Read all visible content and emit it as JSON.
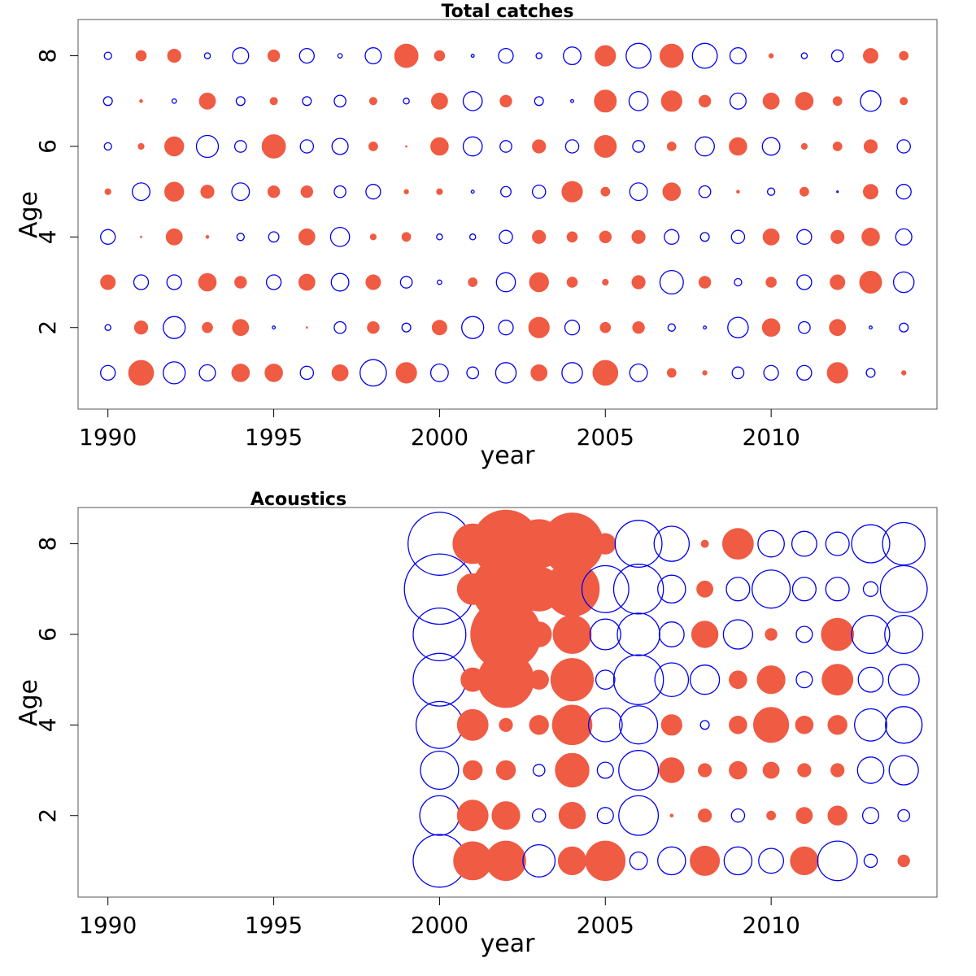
{
  "figure": {
    "colors": {
      "positive": "#0000ee",
      "negative": "#f05b43"
    }
  },
  "chart_data": [
    {
      "type": "scatter",
      "subtype": "bubble-residuals",
      "title": "Total catches",
      "xlabel": "year",
      "ylabel": "Age",
      "xlim": [
        1989.1,
        2015.0
      ],
      "ylim": [
        0.2,
        8.8
      ],
      "x_ticks": [
        1990,
        1995,
        2000,
        2005,
        2010
      ],
      "y_ticks": [
        2,
        4,
        6,
        8
      ],
      "years": [
        1990,
        1991,
        1992,
        1993,
        1994,
        1995,
        1996,
        1997,
        1998,
        1999,
        2000,
        2001,
        2002,
        2003,
        2004,
        2005,
        2006,
        2007,
        2008,
        2009,
        2010,
        2011,
        2012,
        2013,
        2014
      ],
      "ages": [
        1,
        2,
        3,
        4,
        5,
        6,
        7,
        8
      ],
      "residuals_by_age": {
        "1": [
          0.5,
          -0.85,
          0.75,
          0.55,
          -0.6,
          -0.6,
          0.45,
          -0.55,
          0.9,
          -0.7,
          0.6,
          0.4,
          0.7,
          -0.55,
          0.7,
          -0.85,
          0.6,
          -0.3,
          -0.15,
          0.4,
          0.5,
          0.5,
          -0.7,
          0.3,
          -0.15
        ],
        "2": [
          0.2,
          -0.45,
          0.75,
          -0.35,
          -0.55,
          0.1,
          -0.05,
          0.4,
          -0.4,
          0.3,
          -0.5,
          0.75,
          0.5,
          -0.7,
          0.5,
          -0.35,
          -0.4,
          0.25,
          0.1,
          0.7,
          -0.6,
          0.4,
          -0.55,
          0.1,
          0.3
        ],
        "3": [
          -0.5,
          0.5,
          0.5,
          -0.6,
          -0.4,
          0.5,
          -0.55,
          0.6,
          -0.5,
          0.4,
          0.15,
          -0.3,
          0.65,
          -0.65,
          -0.35,
          -0.2,
          -0.45,
          0.8,
          -0.4,
          0.25,
          -0.35,
          0.5,
          -0.5,
          -0.75,
          0.7
        ],
        "4": [
          0.5,
          -0.05,
          -0.55,
          -0.1,
          0.25,
          0.35,
          -0.55,
          0.65,
          -0.2,
          -0.3,
          0.2,
          0.2,
          0.45,
          -0.45,
          -0.35,
          -0.4,
          -0.45,
          0.5,
          0.3,
          0.45,
          -0.55,
          0.5,
          -0.45,
          -0.6,
          0.55
        ],
        "5": [
          -0.2,
          0.6,
          -0.65,
          -0.45,
          0.6,
          -0.4,
          -0.4,
          0.4,
          0.5,
          -0.15,
          -0.2,
          0.1,
          0.35,
          0.45,
          -0.7,
          -0.3,
          0.6,
          -0.6,
          0.4,
          -0.1,
          0.25,
          -0.3,
          0.05,
          -0.5,
          0.5
        ],
        "6": [
          0.25,
          -0.2,
          -0.65,
          0.75,
          0.4,
          -0.8,
          0.45,
          0.55,
          -0.3,
          -0.05,
          -0.6,
          0.65,
          0.4,
          -0.45,
          0.45,
          -0.75,
          0.4,
          -0.3,
          0.65,
          -0.6,
          0.6,
          -0.2,
          -0.3,
          -0.45,
          0.45
        ],
        "7": [
          0.3,
          -0.1,
          0.15,
          -0.55,
          0.3,
          -0.25,
          0.3,
          0.4,
          -0.25,
          0.2,
          -0.55,
          0.65,
          -0.4,
          0.3,
          0.1,
          -0.75,
          0.65,
          -0.7,
          -0.4,
          0.55,
          -0.55,
          -0.6,
          -0.3,
          0.7,
          -0.25
        ],
        "8": [
          0.25,
          -0.35,
          -0.45,
          0.2,
          0.55,
          -0.4,
          0.5,
          0.15,
          0.55,
          -0.8,
          -0.35,
          0.1,
          0.5,
          0.2,
          0.6,
          -0.7,
          0.85,
          -0.8,
          0.85,
          0.55,
          -0.15,
          0.2,
          0.4,
          -0.5,
          -0.3
        ]
      }
    },
    {
      "type": "scatter",
      "subtype": "bubble-residuals",
      "title": "Acoustics",
      "xlabel": "year",
      "ylabel": "Age",
      "xlim": [
        1989.1,
        2015.0
      ],
      "ylim": [
        0.2,
        8.8
      ],
      "x_ticks": [
        1990,
        1995,
        2000,
        2005,
        2010
      ],
      "y_ticks": [
        2,
        4,
        6,
        8
      ],
      "years": [
        2000,
        2001,
        2002,
        2003,
        2004,
        2005,
        2006,
        2007,
        2008,
        2009,
        2010,
        2011,
        2012,
        2013,
        2014
      ],
      "ages": [
        1,
        2,
        3,
        4,
        5,
        6,
        7,
        8
      ],
      "residuals_by_age": {
        "1": [
          1.8,
          -1.3,
          -1.35,
          1.1,
          -0.95,
          -1.35,
          0.6,
          0.95,
          -1.0,
          0.95,
          0.85,
          -0.95,
          1.35,
          0.45,
          -0.4
        ],
        "2": [
          1.35,
          -1.05,
          -0.95,
          0.45,
          -0.9,
          0.55,
          1.35,
          -0.1,
          -0.45,
          0.45,
          -0.3,
          -0.55,
          -0.65,
          0.55,
          0.4
        ],
        "3": [
          1.3,
          -0.65,
          -0.65,
          0.4,
          -1.15,
          0.55,
          1.35,
          -0.85,
          -0.45,
          -0.6,
          -0.55,
          -0.45,
          -0.45,
          0.9,
          1.0
        ],
        "4": [
          1.6,
          -1.05,
          -0.45,
          -0.65,
          -1.35,
          1.15,
          1.3,
          -0.7,
          0.3,
          -0.6,
          -1.2,
          -0.6,
          -0.65,
          1.1,
          1.25
        ],
        "5": [
          1.8,
          -0.8,
          -1.9,
          -0.65,
          -1.45,
          0.65,
          1.7,
          1.15,
          1.0,
          -0.6,
          -0.95,
          0.55,
          -1.05,
          0.85,
          1.05
        ],
        "6": [
          1.8,
          -0.1,
          -2.4,
          -0.85,
          -1.3,
          1.05,
          1.45,
          0.85,
          -0.9,
          1.0,
          -0.4,
          0.55,
          -1.1,
          1.3,
          1.3
        ],
        "7": [
          2.4,
          -1.05,
          -2.3,
          -1.5,
          -1.85,
          1.6,
          1.7,
          0.95,
          -0.55,
          0.8,
          1.3,
          0.8,
          0.8,
          0.5,
          1.6
        ],
        "8": [
          2.15,
          -1.35,
          -2.3,
          -1.65,
          -2.1,
          -0.7,
          1.6,
          1.2,
          -0.25,
          -1.05,
          0.9,
          0.85,
          0.8,
          1.3,
          1.45
        ]
      }
    }
  ]
}
